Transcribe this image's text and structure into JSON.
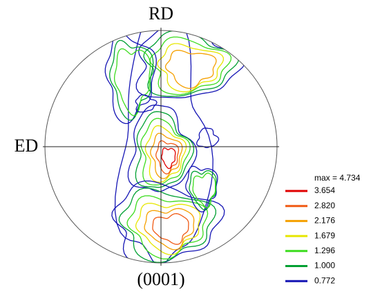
{
  "labels": {
    "top": "RD",
    "left": "ED",
    "bottom": "(0001)"
  },
  "legend": {
    "max": "max = 4.734",
    "levels": [
      {
        "label": "3.654",
        "color": "#e00000"
      },
      {
        "label": "2.820",
        "color": "#f05a14"
      },
      {
        "label": "2.176",
        "color": "#f5a000"
      },
      {
        "label": "1.679",
        "color": "#e6e600"
      },
      {
        "label": "1.296",
        "color": "#3cdc1e"
      },
      {
        "label": "1.000",
        "color": "#00a032"
      },
      {
        "label": "0.772",
        "color": "#1414b4"
      }
    ]
  }
}
